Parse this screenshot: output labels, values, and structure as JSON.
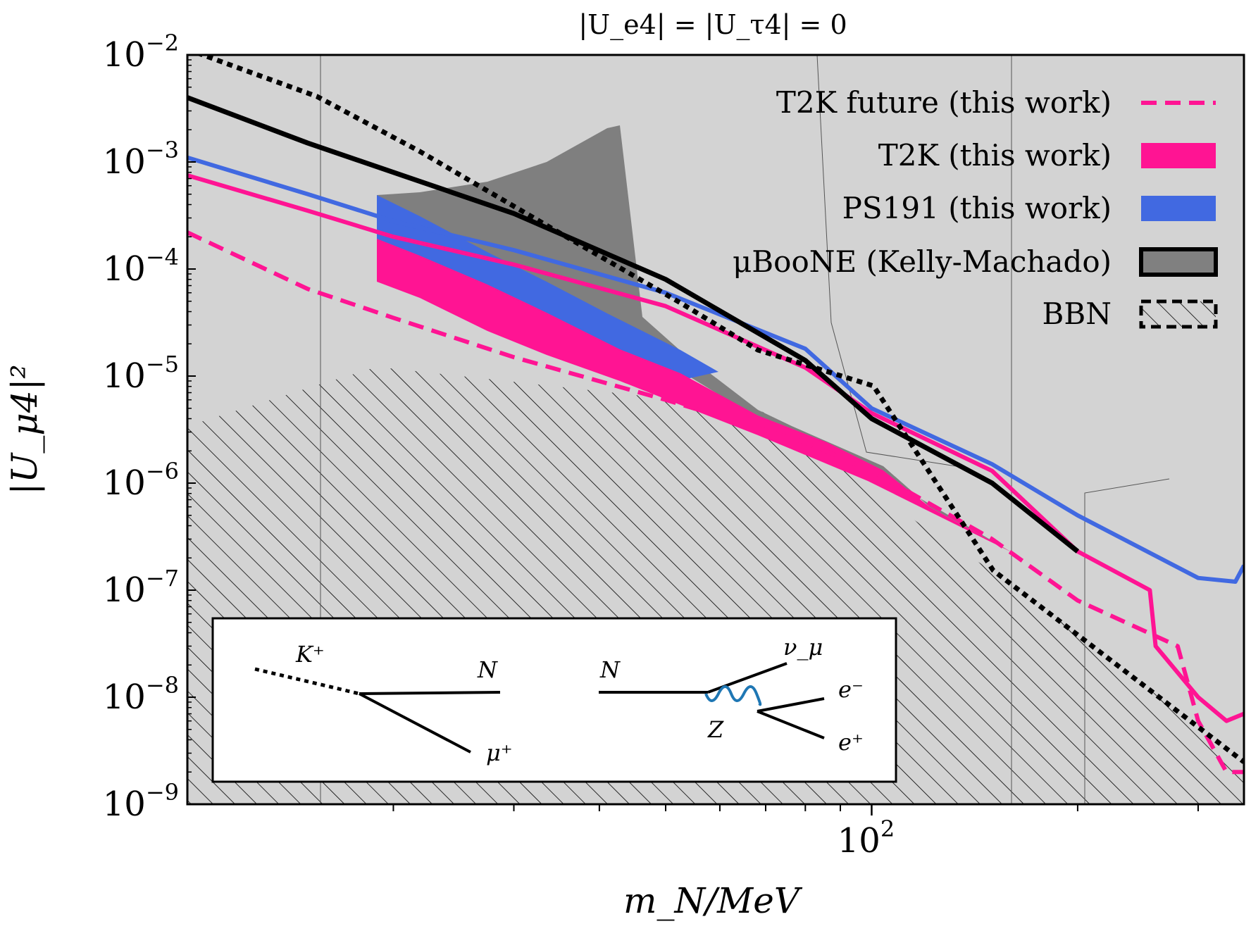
{
  "chart_data": {
    "type": "line",
    "title": "|U_e4| = |U_τ4| = 0",
    "xlabel": "m_N/MeV",
    "ylabel": "|U_μ4|²",
    "xscale": "log",
    "yscale": "log",
    "xlim": [
      10,
      350
    ],
    "ylim": [
      1e-09,
      0.01
    ],
    "x_tick_labels": [
      {
        "value": 100,
        "base": "10",
        "exp": "2"
      }
    ],
    "y_tick_labels": [
      {
        "value": 0.01,
        "base": "10",
        "exp": "−2"
      },
      {
        "value": 0.001,
        "base": "10",
        "exp": "−3"
      },
      {
        "value": 0.0001,
        "base": "10",
        "exp": "−4"
      },
      {
        "value": 1e-05,
        "base": "10",
        "exp": "−5"
      },
      {
        "value": 1e-06,
        "base": "10",
        "exp": "−6"
      },
      {
        "value": 1e-07,
        "base": "10",
        "exp": "−7"
      },
      {
        "value": 1e-08,
        "base": "10",
        "exp": "−8"
      },
      {
        "value": 1e-09,
        "base": "10",
        "exp": "−9"
      }
    ],
    "legend": {
      "placement": "top-right",
      "entries": [
        {
          "label": "T2K future (this work)",
          "style": "dashed-line",
          "color": "#ff1493"
        },
        {
          "label": "T2K (this work)",
          "style": "filled",
          "color": "#ff1493"
        },
        {
          "label": "PS191 (this work)",
          "style": "filled",
          "color": "#4169e1"
        },
        {
          "label": "μBooNE (Kelly-Machado)",
          "style": "filled-outlined",
          "color": "#808080"
        },
        {
          "label": "BBN",
          "style": "hatched",
          "color": "#000000"
        }
      ]
    },
    "series": [
      {
        "name": "T2K future (this work)",
        "color": "#ff1493",
        "dash": true,
        "x": [
          10,
          15,
          20,
          30,
          50,
          80,
          100,
          150,
          200,
          280,
          300,
          330,
          350
        ],
        "y": [
          0.00022,
          6.5e-05,
          3.5e-05,
          1.5e-05,
          6e-06,
          2.4e-06,
          1.3e-06,
          3e-07,
          8e-08,
          3e-08,
          6e-09,
          2e-09,
          2e-09
        ]
      },
      {
        "name": "T2K (this work)",
        "color": "#ff1493",
        "dash": false,
        "x": [
          10,
          15,
          20,
          30,
          50,
          80,
          100,
          150,
          200,
          255,
          260,
          300,
          330,
          350
        ],
        "y": [
          0.00075,
          0.00035,
          0.0002,
          0.00011,
          4.5e-05,
          1.2e-05,
          4.5e-06,
          1.3e-06,
          2.3e-07,
          1e-07,
          3e-08,
          1e-08,
          6e-09,
          7e-09
        ]
      },
      {
        "name": "PS191 (this work)",
        "color": "#4169e1",
        "dash": false,
        "x": [
          10,
          15,
          20,
          30,
          50,
          80,
          100,
          150,
          200,
          300,
          340,
          350
        ],
        "y": [
          0.0011,
          0.0005,
          0.00028,
          0.00015,
          6e-05,
          1.8e-05,
          5e-06,
          1.5e-06,
          5e-07,
          1.3e-07,
          1.2e-07,
          1.7e-07
        ]
      },
      {
        "name": "μBooNE (Kelly-Machado)",
        "color": "#000000",
        "dash": false,
        "x": [
          10,
          15,
          20,
          30,
          50,
          80,
          100,
          150,
          200
        ],
        "y": [
          0.004,
          0.0015,
          0.0008,
          0.00033,
          8e-05,
          1.4e-05,
          4e-06,
          1e-06,
          2.3e-07
        ]
      }
    ],
    "annotations": {
      "inset_diagram": {
        "left": {
          "labels": [
            "K⁺",
            "N",
            "μ⁺"
          ]
        },
        "right": {
          "labels": [
            "N",
            "ν_μ",
            "e⁻",
            "e⁺",
            "Z"
          ]
        }
      }
    }
  }
}
